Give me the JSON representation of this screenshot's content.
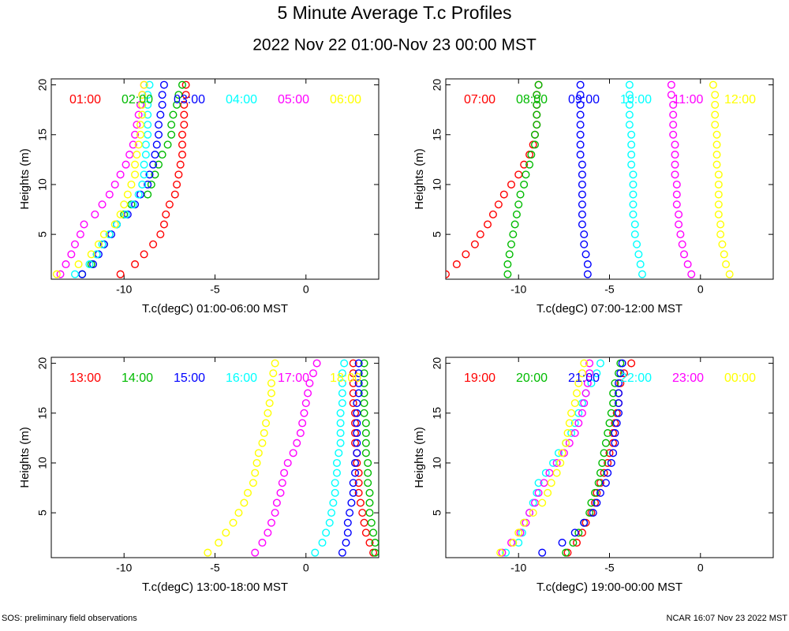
{
  "title": "5 Minute Average T.c Profiles",
  "subtitle": "2022 Nov 22 01:00-Nov 23 00:00 MST",
  "footer_left": "SOS: preliminary field observations",
  "footer_right": "NCAR 16:07 Nov 23 2022 MST",
  "chart_data": [
    {
      "type": "scatter",
      "x_label": "T.c(degC) 01:00-06:00 MST",
      "y_label": "Heights (m)",
      "xlim": [
        -14,
        4
      ],
      "ylim": [
        0.5,
        20.6
      ],
      "xticks": [
        -10,
        -5,
        0
      ],
      "yticks": [
        5,
        10,
        15,
        20
      ],
      "y": [
        1,
        2,
        3,
        4,
        5,
        6,
        7,
        8,
        9,
        10,
        11,
        12,
        13,
        14,
        15,
        16,
        17,
        18,
        19,
        20
      ],
      "series": [
        {
          "name": "01:00",
          "color": "#ff0000",
          "x": [
            -10.2,
            -9.4,
            -8.9,
            -8.4,
            -8.0,
            -7.8,
            -7.7,
            -7.5,
            -7.2,
            -7.1,
            -7.0,
            -6.9,
            -6.8,
            -6.8,
            -6.8,
            -6.7,
            -6.7,
            -6.7,
            -6.6,
            -6.6
          ]
        },
        {
          "name": "02:00",
          "color": "#00bb00",
          "x": [
            -12.3,
            -11.8,
            -11.5,
            -11.1,
            -10.8,
            -10.4,
            -10.0,
            -9.6,
            -8.7,
            -8.5,
            -8.3,
            -8.1,
            -7.9,
            -7.6,
            -7.4,
            -7.4,
            -7.3,
            -7.1,
            -7.0,
            -6.8
          ]
        },
        {
          "name": "03:00",
          "color": "#0000ff",
          "x": [
            -12.3,
            -11.7,
            -11.4,
            -11.1,
            -10.7,
            -10.4,
            -9.8,
            -9.4,
            -9.1,
            -8.7,
            -8.6,
            -8.4,
            -8.3,
            -8.2,
            -8.1,
            -8.1,
            -8.0,
            -7.9,
            -7.9,
            -7.8
          ]
        },
        {
          "name": "04:00",
          "color": "#00ffff",
          "x": [
            -12.7,
            -11.9,
            -11.5,
            -11.2,
            -10.8,
            -10.4,
            -9.9,
            -9.5,
            -9.2,
            -9.0,
            -8.9,
            -8.9,
            -8.8,
            -8.8,
            -8.7,
            -8.7,
            -8.7,
            -8.7,
            -8.7,
            -8.6
          ]
        },
        {
          "name": "05:00",
          "color": "#ff00ff",
          "x": [
            -13.5,
            -13.2,
            -12.9,
            -12.7,
            -12.4,
            -12.2,
            -11.6,
            -11.2,
            -10.8,
            -10.5,
            -10.2,
            -9.9,
            -9.7,
            -9.5,
            -9.4,
            -9.3,
            -9.2,
            -9.1,
            -9.0,
            -8.9
          ]
        },
        {
          "name": "06:00",
          "color": "#ffff00",
          "x": [
            -13.7,
            -12.5,
            -11.8,
            -11.4,
            -11.1,
            -10.5,
            -10.2,
            -10.0,
            -9.8,
            -9.6,
            -9.4,
            -9.4,
            -9.3,
            -9.2,
            -9.1,
            -9.1,
            -9.0,
            -9.0,
            -9.0,
            -8.9
          ]
        }
      ]
    },
    {
      "type": "scatter",
      "x_label": "T.c(degC) 07:00-12:00 MST",
      "y_label": "Heights (m)",
      "xlim": [
        -14,
        4
      ],
      "ylim": [
        0.5,
        20.6
      ],
      "xticks": [
        -10,
        -5,
        0
      ],
      "yticks": [
        5,
        10,
        15,
        20
      ],
      "y": [
        1,
        2,
        3,
        4,
        5,
        6,
        7,
        8,
        9,
        10,
        11,
        12,
        13,
        14,
        15,
        16,
        17,
        18,
        19,
        20
      ],
      "series": [
        {
          "name": "07:00",
          "color": "#ff0000",
          "x": [
            -14.0,
            -13.4,
            -12.9,
            -12.4,
            -12.1,
            -11.7,
            -11.4,
            -11.1,
            -10.8,
            -10.4,
            -10.0,
            -9.7,
            -9.4,
            -9.2,
            -9.1,
            -9.0,
            -9.0,
            -9.0,
            -9.0,
            -8.9
          ]
        },
        {
          "name": "08:00",
          "color": "#00bb00",
          "x": [
            -10.6,
            -10.6,
            -10.5,
            -10.4,
            -10.3,
            -10.2,
            -10.1,
            -10.0,
            -9.9,
            -9.7,
            -9.6,
            -9.4,
            -9.3,
            -9.1,
            -9.1,
            -9.0,
            -9.0,
            -9.0,
            -9.0,
            -8.9
          ]
        },
        {
          "name": "09:00",
          "color": "#0000ff",
          "x": [
            -6.2,
            -6.2,
            -6.3,
            -6.4,
            -6.4,
            -6.5,
            -6.5,
            -6.5,
            -6.5,
            -6.5,
            -6.5,
            -6.5,
            -6.6,
            -6.6,
            -6.6,
            -6.6,
            -6.6,
            -6.6,
            -6.6,
            -6.6
          ]
        },
        {
          "name": "10:00",
          "color": "#00ffff",
          "x": [
            -3.2,
            -3.3,
            -3.4,
            -3.5,
            -3.6,
            -3.6,
            -3.7,
            -3.7,
            -3.7,
            -3.7,
            -3.7,
            -3.8,
            -3.8,
            -3.8,
            -3.8,
            -3.9,
            -3.9,
            -3.9,
            -3.9,
            -3.9
          ]
        },
        {
          "name": "11:00",
          "color": "#ff00ff",
          "x": [
            -0.5,
            -0.7,
            -0.9,
            -1.0,
            -1.1,
            -1.2,
            -1.2,
            -1.3,
            -1.3,
            -1.3,
            -1.4,
            -1.4,
            -1.4,
            -1.4,
            -1.5,
            -1.5,
            -1.5,
            -1.5,
            -1.6,
            -1.6
          ]
        },
        {
          "name": "12:00",
          "color": "#ffff00",
          "x": [
            1.6,
            1.4,
            1.3,
            1.2,
            1.1,
            1.1,
            1.0,
            1.0,
            1.0,
            1.0,
            1.0,
            0.9,
            0.9,
            0.9,
            0.9,
            0.8,
            0.8,
            0.8,
            0.8,
            0.7
          ]
        }
      ]
    },
    {
      "type": "scatter",
      "x_label": "T.c(degC) 13:00-18:00 MST",
      "y_label": "Heights (m)",
      "xlim": [
        -14,
        4
      ],
      "ylim": [
        0.5,
        20.6
      ],
      "xticks": [
        -10,
        -5,
        0
      ],
      "yticks": [
        5,
        10,
        15,
        20
      ],
      "y": [
        1,
        2,
        3,
        4,
        5,
        6,
        7,
        8,
        9,
        10,
        11,
        12,
        13,
        14,
        15,
        16,
        17,
        18,
        19,
        20
      ],
      "series": [
        {
          "name": "13:00",
          "color": "#ff0000",
          "x": [
            3.7,
            3.5,
            3.3,
            3.2,
            3.1,
            3.0,
            2.9,
            2.9,
            2.9,
            2.8,
            2.8,
            2.7,
            2.7,
            2.7,
            2.7,
            2.6,
            2.6,
            2.6,
            2.6,
            2.6
          ]
        },
        {
          "name": "14:00",
          "color": "#00bb00",
          "x": [
            3.8,
            3.8,
            3.7,
            3.6,
            3.5,
            3.5,
            3.5,
            3.4,
            3.4,
            3.4,
            3.3,
            3.3,
            3.3,
            3.3,
            3.2,
            3.2,
            3.2,
            3.2,
            3.2,
            3.2
          ]
        },
        {
          "name": "15:00",
          "color": "#0000ff",
          "x": [
            2.0,
            2.2,
            2.3,
            2.3,
            2.4,
            2.5,
            2.6,
            2.6,
            2.7,
            2.7,
            2.8,
            2.8,
            2.8,
            2.8,
            2.8,
            2.8,
            2.9,
            2.9,
            2.9,
            2.9
          ]
        },
        {
          "name": "16:00",
          "color": "#00ffff",
          "x": [
            0.5,
            0.9,
            1.1,
            1.3,
            1.4,
            1.5,
            1.6,
            1.6,
            1.7,
            1.7,
            1.8,
            1.9,
            1.9,
            1.9,
            1.9,
            2.0,
            2.0,
            2.0,
            2.0,
            2.1
          ]
        },
        {
          "name": "17:00",
          "color": "#ff00ff",
          "x": [
            -2.8,
            -2.4,
            -2.1,
            -1.9,
            -1.7,
            -1.6,
            -1.4,
            -1.3,
            -1.2,
            -1.0,
            -0.7,
            -0.5,
            -0.3,
            -0.2,
            -0.1,
            0.0,
            0.1,
            0.2,
            0.4,
            0.6
          ]
        },
        {
          "name": "18:00",
          "color": "#ffff00",
          "x": [
            -5.4,
            -4.8,
            -4.4,
            -4.0,
            -3.7,
            -3.4,
            -3.2,
            -2.9,
            -2.8,
            -2.7,
            -2.6,
            -2.4,
            -2.3,
            -2.2,
            -2.1,
            -2.0,
            -1.9,
            -1.9,
            -1.8,
            -1.7
          ]
        }
      ]
    },
    {
      "type": "scatter",
      "x_label": "T.c(degC) 19:00-00:00 MST",
      "y_label": "Heights (m)",
      "xlim": [
        -14,
        4
      ],
      "ylim": [
        0.5,
        20.6
      ],
      "xticks": [
        -10,
        -5,
        0
      ],
      "yticks": [
        5,
        10,
        15,
        20
      ],
      "y": [
        1,
        2,
        3,
        4,
        5,
        6,
        7,
        8,
        9,
        10,
        11,
        12,
        13,
        14,
        15,
        16,
        17,
        18,
        19,
        20
      ],
      "series": [
        {
          "name": "19:00",
          "color": "#ff0000",
          "x": [
            -7.3,
            -6.8,
            -6.5,
            -6.3,
            -6.0,
            -5.8,
            -5.7,
            -5.5,
            -5.3,
            -5.1,
            -5.0,
            -4.8,
            -4.8,
            -4.7,
            -4.6,
            -4.5,
            -4.5,
            -4.4,
            -4.2,
            -3.8
          ]
        },
        {
          "name": "20:00",
          "color": "#00bb00",
          "x": [
            -7.4,
            -7.0,
            -6.7,
            -6.4,
            -6.1,
            -6.0,
            -5.8,
            -5.6,
            -5.5,
            -5.4,
            -5.3,
            -5.2,
            -5.1,
            -5.0,
            -4.9,
            -4.8,
            -4.8,
            -4.7,
            -4.5,
            -4.4
          ]
        },
        {
          "name": "21:00",
          "color": "#0000ff",
          "x": [
            -8.7,
            -7.6,
            -6.9,
            -6.4,
            -5.9,
            -5.7,
            -5.5,
            -5.2,
            -5.1,
            -4.9,
            -4.8,
            -4.7,
            -4.7,
            -4.6,
            -4.5,
            -4.5,
            -4.5,
            -4.5,
            -4.4,
            -4.3
          ]
        },
        {
          "name": "22:00",
          "color": "#00ffff",
          "x": [
            -10.7,
            -10.0,
            -9.8,
            -9.7,
            -9.4,
            -9.2,
            -9.0,
            -8.9,
            -8.5,
            -8.1,
            -7.8,
            -7.4,
            -7.1,
            -6.9,
            -6.7,
            -6.5,
            -6.3,
            -6.0,
            -5.7,
            -5.5
          ]
        },
        {
          "name": "23:00",
          "color": "#ff00ff",
          "x": [
            -10.9,
            -10.4,
            -9.9,
            -9.6,
            -9.4,
            -9.1,
            -8.9,
            -8.6,
            -8.3,
            -7.9,
            -7.5,
            -7.2,
            -6.9,
            -6.7,
            -6.5,
            -6.4,
            -6.3,
            -6.2,
            -6.1,
            -6.1
          ]
        },
        {
          "name": "00:00",
          "color": "#ffff00",
          "x": [
            -11.0,
            -10.3,
            -10.0,
            -9.7,
            -9.2,
            -8.7,
            -8.4,
            -8.2,
            -7.9,
            -7.7,
            -7.6,
            -7.4,
            -7.3,
            -7.2,
            -7.1,
            -6.9,
            -6.8,
            -6.7,
            -6.5,
            -6.4
          ]
        }
      ]
    }
  ]
}
